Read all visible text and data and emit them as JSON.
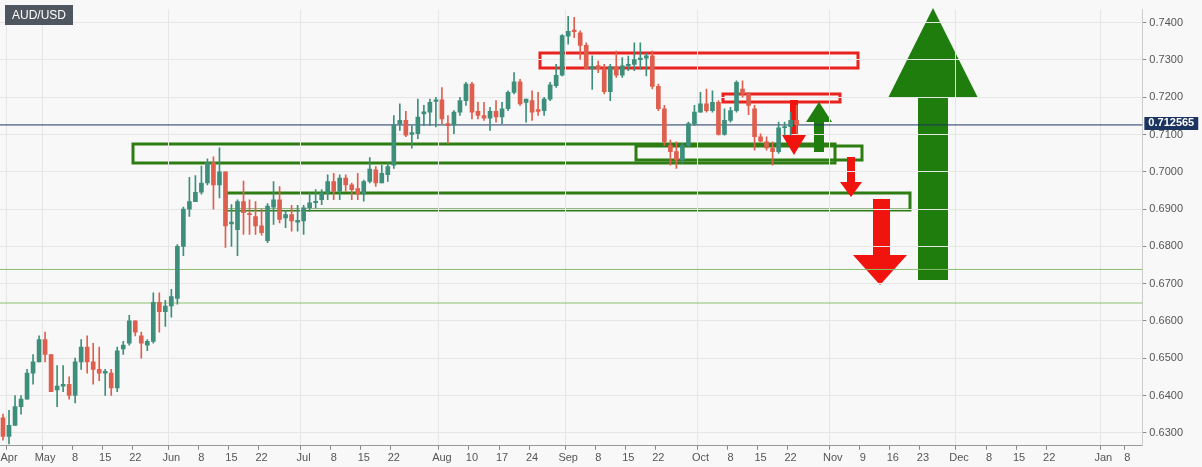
{
  "chart_data": {
    "type": "candlestick",
    "title": "AUD/USD",
    "categories": [
      null,
      "Apr",
      null,
      null,
      null,
      null,
      null,
      "May",
      null,
      null,
      null,
      null,
      "8",
      null,
      null,
      null,
      null,
      "15",
      null,
      null,
      null,
      null,
      "22",
      null,
      null,
      null,
      null,
      null,
      "Jun",
      null,
      null,
      null,
      null,
      "8",
      null,
      null,
      null,
      null,
      "15",
      null,
      null,
      null,
      null,
      "22",
      null,
      null,
      null,
      null,
      null,
      null,
      "Jul",
      null,
      null,
      null,
      null,
      "8",
      null,
      null,
      null,
      null,
      "15",
      null,
      null,
      null,
      null,
      "22",
      null,
      null,
      null,
      null,
      null,
      null,
      null,
      "Aug",
      null,
      null,
      null,
      null,
      "10",
      null,
      null,
      null,
      null,
      "17",
      null,
      null,
      null,
      null,
      "24",
      null,
      null,
      null,
      null,
      null,
      "Sep",
      null,
      null,
      null,
      null,
      "8",
      null,
      null,
      null,
      null,
      "15",
      null,
      null,
      null,
      null,
      "22",
      null,
      null,
      null,
      null,
      null,
      null,
      "Oct",
      null,
      null,
      null,
      null,
      "8",
      null,
      null,
      null,
      null,
      "15",
      null,
      null,
      null,
      null,
      "22",
      null,
      null,
      null,
      null,
      null,
      null,
      "Nov",
      null,
      null,
      null,
      null,
      "9",
      null,
      null,
      null,
      null,
      "16",
      null,
      null,
      null,
      null,
      "23",
      null,
      null,
      null,
      null,
      null,
      "Dec",
      null,
      null,
      null,
      null,
      "8",
      null,
      null,
      null,
      null,
      "15",
      null,
      null,
      null,
      null,
      "22",
      null,
      null,
      null,
      null,
      null,
      null,
      null,
      null,
      "Jan",
      null,
      null,
      null,
      "8",
      null,
      null
    ],
    "ohlc": [
      [
        0.634,
        0.635,
        0.628,
        0.629
      ],
      [
        0.629,
        0.636,
        0.627,
        0.632
      ],
      [
        0.632,
        0.64,
        0.632,
        0.637
      ],
      [
        0.637,
        0.64,
        0.635,
        0.639
      ],
      [
        0.639,
        0.647,
        0.639,
        0.646
      ],
      [
        0.646,
        0.651,
        0.643,
        0.649
      ],
      [
        0.649,
        0.656,
        0.649,
        0.655
      ],
      [
        0.655,
        0.657,
        0.649,
        0.651
      ],
      [
        0.651,
        0.651,
        0.641,
        0.641
      ],
      [
        0.6415,
        0.648,
        0.637,
        0.6425
      ],
      [
        0.6425,
        0.648,
        0.641,
        0.643
      ],
      [
        0.643,
        0.645,
        0.639,
        0.64
      ],
      [
        0.64,
        0.65,
        0.638,
        0.649
      ],
      [
        0.649,
        0.655,
        0.647,
        0.653
      ],
      [
        0.653,
        0.656,
        0.646,
        0.649
      ],
      [
        0.649,
        0.654,
        0.643,
        0.647
      ],
      [
        0.647,
        0.653,
        0.644,
        0.646
      ],
      [
        0.646,
        0.647,
        0.64,
        0.6465
      ],
      [
        0.646,
        0.647,
        0.64,
        0.642
      ],
      [
        0.642,
        0.653,
        0.641,
        0.652
      ],
      [
        0.6525,
        0.6545,
        0.651,
        0.6535
      ],
      [
        0.654,
        0.6615,
        0.6535,
        0.66
      ],
      [
        0.66,
        0.66,
        0.656,
        0.657
      ],
      [
        0.656,
        0.657,
        0.65,
        0.654
      ],
      [
        0.6535,
        0.655,
        0.652,
        0.6545
      ],
      [
        0.6545,
        0.6675,
        0.654,
        0.665
      ],
      [
        0.665,
        0.6675,
        0.657,
        0.6625
      ],
      [
        0.6625,
        0.6655,
        0.6585,
        0.664
      ],
      [
        0.664,
        0.6685,
        0.661,
        0.6665
      ],
      [
        0.666,
        0.6805,
        0.6645,
        0.68
      ],
      [
        0.68,
        0.6905,
        0.6775,
        0.69
      ],
      [
        0.69,
        0.6985,
        0.688,
        0.692
      ],
      [
        0.692,
        0.699,
        0.692,
        0.6945
      ],
      [
        0.6945,
        0.7015,
        0.694,
        0.697
      ],
      [
        0.697,
        0.7035,
        0.6965,
        0.7025
      ],
      [
        0.7025,
        0.704,
        0.69,
        0.6965
      ],
      [
        0.6965,
        0.7064,
        0.693,
        0.7
      ],
      [
        0.7,
        0.7,
        0.6797,
        0.6855
      ],
      [
        0.686,
        0.6912,
        0.68,
        0.6865
      ],
      [
        0.6845,
        0.6925,
        0.6775,
        0.692
      ],
      [
        0.692,
        0.6975,
        0.6832,
        0.689
      ],
      [
        0.6888,
        0.6925,
        0.6832,
        0.6885
      ],
      [
        0.688,
        0.692,
        0.6832,
        0.6855
      ],
      [
        0.6855,
        0.69,
        0.683,
        0.6837
      ],
      [
        0.6815,
        0.6915,
        0.681,
        0.6908
      ],
      [
        0.6905,
        0.6974,
        0.6859,
        0.6925
      ],
      [
        0.6925,
        0.696,
        0.6863,
        0.6872
      ],
      [
        0.6876,
        0.6895,
        0.685,
        0.6885
      ],
      [
        0.6885,
        0.691,
        0.6841,
        0.6868
      ],
      [
        0.6865,
        0.691,
        0.6841,
        0.687
      ],
      [
        0.6868,
        0.691,
        0.6832,
        0.6903
      ],
      [
        0.6904,
        0.6943,
        0.6894,
        0.6917
      ],
      [
        0.6917,
        0.6952,
        0.6903,
        0.6921
      ],
      [
        0.6925,
        0.6952,
        0.6912,
        0.6943
      ],
      [
        0.6943,
        0.6992,
        0.6925,
        0.6974
      ],
      [
        0.6974,
        0.6996,
        0.6925,
        0.6948
      ],
      [
        0.6948,
        0.6992,
        0.6925,
        0.6983
      ],
      [
        0.6983,
        0.6992,
        0.6948,
        0.6965
      ],
      [
        0.6965,
        0.697,
        0.6925,
        0.6952
      ],
      [
        0.6955,
        0.6996,
        0.6925,
        0.694
      ],
      [
        0.694,
        0.6978,
        0.6921,
        0.6974
      ],
      [
        0.6974,
        0.7038,
        0.697,
        0.7007
      ],
      [
        0.7005,
        0.7014,
        0.6961,
        0.697
      ],
      [
        0.697,
        0.7018,
        0.697,
        0.6996
      ],
      [
        0.6992,
        0.7023,
        0.6974,
        0.7014
      ],
      [
        0.7018,
        0.7151,
        0.7009,
        0.7126
      ],
      [
        0.7129,
        0.7182,
        0.7111,
        0.7138
      ],
      [
        0.7138,
        0.7162,
        0.7094,
        0.7098
      ],
      [
        0.71,
        0.7124,
        0.7063,
        0.7105
      ],
      [
        0.7102,
        0.7195,
        0.7089,
        0.7147
      ],
      [
        0.7155,
        0.7178,
        0.7124,
        0.7161
      ],
      [
        0.716,
        0.7195,
        0.7124,
        0.7186
      ],
      [
        0.7189,
        0.72,
        0.712,
        0.7193
      ],
      [
        0.7193,
        0.7226,
        0.7129,
        0.7142
      ],
      [
        0.7129,
        0.7151,
        0.7076,
        0.7124
      ],
      [
        0.7126,
        0.7164,
        0.7102,
        0.716
      ],
      [
        0.716,
        0.72,
        0.7151,
        0.7191
      ],
      [
        0.7191,
        0.724,
        0.7178,
        0.7235
      ],
      [
        0.7235,
        0.724,
        0.7142,
        0.716
      ],
      [
        0.7162,
        0.7186,
        0.7142,
        0.7151
      ],
      [
        0.7151,
        0.7186,
        0.7138,
        0.7144
      ],
      [
        0.7144,
        0.7173,
        0.7111,
        0.7162
      ],
      [
        0.7162,
        0.7191,
        0.7133,
        0.7147
      ],
      [
        0.7147,
        0.7186,
        0.7129,
        0.7169
      ],
      [
        0.7169,
        0.7217,
        0.7164,
        0.7213
      ],
      [
        0.7213,
        0.7266,
        0.7209,
        0.7241
      ],
      [
        0.7241,
        0.7248,
        0.7178,
        0.7182
      ],
      [
        0.7186,
        0.7195,
        0.7133,
        0.7195
      ],
      [
        0.7191,
        0.7217,
        0.7138,
        0.716
      ],
      [
        0.7167,
        0.7213,
        0.7151,
        0.7162
      ],
      [
        0.7164,
        0.72,
        0.7151,
        0.7195
      ],
      [
        0.7195,
        0.724,
        0.7191,
        0.7233
      ],
      [
        0.7231,
        0.7288,
        0.7226,
        0.7259
      ],
      [
        0.7259,
        0.7368,
        0.7257,
        0.7365
      ],
      [
        0.7364,
        0.7417,
        0.7342,
        0.7377
      ],
      [
        0.738,
        0.7414,
        0.736,
        0.7376
      ],
      [
        0.7373,
        0.7378,
        0.7302,
        0.7339
      ],
      [
        0.7339,
        0.7346,
        0.7276,
        0.7277
      ],
      [
        0.7276,
        0.7311,
        0.7221,
        0.7283
      ],
      [
        0.7285,
        0.7297,
        0.7266,
        0.7276
      ],
      [
        0.7276,
        0.7288,
        0.7209,
        0.7215
      ],
      [
        0.7215,
        0.7288,
        0.7191,
        0.7282
      ],
      [
        0.7282,
        0.7324,
        0.7253,
        0.7259
      ],
      [
        0.7259,
        0.7306,
        0.7253,
        0.7284
      ],
      [
        0.7284,
        0.731,
        0.7271,
        0.7288
      ],
      [
        0.7288,
        0.7346,
        0.7271,
        0.7301
      ],
      [
        0.7301,
        0.7346,
        0.7275,
        0.7305
      ],
      [
        0.7305,
        0.7319,
        0.7257,
        0.7311
      ],
      [
        0.7311,
        0.7324,
        0.7222,
        0.7229
      ],
      [
        0.7229,
        0.7235,
        0.7164,
        0.7169
      ],
      [
        0.7169,
        0.7178,
        0.7071,
        0.708
      ],
      [
        0.7071,
        0.7085,
        0.7018,
        0.7054
      ],
      [
        0.7054,
        0.708,
        0.7009,
        0.7032
      ],
      [
        0.7032,
        0.7076,
        0.7023,
        0.7071
      ],
      [
        0.7071,
        0.7133,
        0.7067,
        0.7129
      ],
      [
        0.7129,
        0.7178,
        0.7124,
        0.716
      ],
      [
        0.716,
        0.7213,
        0.716,
        0.7182
      ],
      [
        0.7182,
        0.7222,
        0.716,
        0.7164
      ],
      [
        0.7164,
        0.7217,
        0.716,
        0.7186
      ],
      [
        0.7186,
        0.7191,
        0.7098,
        0.71
      ],
      [
        0.71,
        0.7169,
        0.7098,
        0.7138
      ],
      [
        0.7138,
        0.7173,
        0.7133,
        0.7164
      ],
      [
        0.7164,
        0.7244,
        0.716,
        0.724
      ],
      [
        0.7222,
        0.7244,
        0.72,
        0.7209
      ],
      [
        0.7209,
        0.7213,
        0.7153,
        0.7178
      ],
      [
        0.7169,
        0.7178,
        0.7058,
        0.7094
      ],
      [
        0.7094,
        0.7102,
        0.708,
        0.7082
      ],
      [
        0.708,
        0.7094,
        0.7058,
        0.7064
      ],
      [
        0.7063,
        0.708,
        0.7018,
        0.7054
      ],
      [
        0.7054,
        0.7133,
        0.7049,
        0.7118
      ],
      [
        0.7118,
        0.7133,
        0.7098,
        0.7121
      ],
      [
        0.7121,
        0.716,
        0.7098,
        0.7138
      ],
      [
        0.7138,
        0.7178,
        0.7102,
        0.7126
      ],
      null,
      null,
      null,
      null,
      null,
      null,
      null,
      null,
      null,
      null,
      null,
      null,
      null,
      null,
      null,
      null,
      null,
      null,
      null,
      null,
      null,
      null,
      null,
      null,
      null,
      null,
      null,
      null,
      null,
      null,
      null,
      null,
      null,
      null,
      null,
      null,
      null,
      null,
      null,
      null,
      null,
      null,
      null,
      null,
      null,
      null,
      null,
      null,
      null,
      null,
      null,
      null,
      null,
      null,
      null,
      null,
      null
    ],
    "ylim": [
      0.6265,
      0.7435
    ],
    "yticks": [
      {
        "value": 0.63,
        "label": "0.6300"
      },
      {
        "value": 0.64,
        "label": "0.6400"
      },
      {
        "value": 0.65,
        "label": "0.6500"
      },
      {
        "value": 0.66,
        "label": "0.6600"
      },
      {
        "value": 0.67,
        "label": "0.6700"
      },
      {
        "value": 0.68,
        "label": "0.6800"
      },
      {
        "value": 0.69,
        "label": "0.6900"
      },
      {
        "value": 0.7,
        "label": "0.7000"
      },
      {
        "value": 0.71,
        "label": "0.7100"
      },
      {
        "value": 0.72,
        "label": "0.7200"
      },
      {
        "value": 0.73,
        "label": "0.7300"
      },
      {
        "value": 0.74,
        "label": "0.7400"
      }
    ],
    "ref_lines": [
      {
        "axis": "y",
        "value": 0.712565,
        "label": "0.712565",
        "color": "#1c3560"
      },
      {
        "axis": "y",
        "value": 0.6738,
        "color": "#8cbf6e"
      },
      {
        "axis": "y",
        "value": 0.6648,
        "color": "#8cbf6e"
      }
    ],
    "grid": true
  }
}
